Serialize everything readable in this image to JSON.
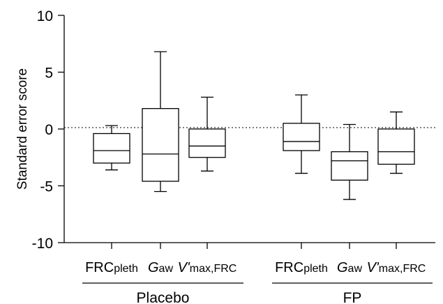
{
  "chart_data": {
    "type": "boxplot",
    "ylabel": "Standard error score",
    "ylim": [
      -10,
      10
    ],
    "yticks": [
      10,
      5,
      0,
      -5,
      -10
    ],
    "ytick_labels": [
      "10",
      "5",
      "0",
      "-5",
      "-10"
    ],
    "reference_line": 0,
    "groups": [
      {
        "name": "Placebo",
        "boxes": [
          {
            "label_main": "FRC",
            "label_italic": "",
            "label_sub": "pleth",
            "min": -3.6,
            "q1": -3.0,
            "median": -1.9,
            "q3": -0.4,
            "max": 0.3
          },
          {
            "label_main": "",
            "label_italic": "G",
            "label_sub": "aw",
            "min": -5.5,
            "q1": -4.6,
            "median": -2.2,
            "q3": 1.8,
            "max": 6.8
          },
          {
            "label_main": "",
            "label_italic": "V'",
            "label_sub": "max,FRC",
            "min": -3.7,
            "q1": -2.5,
            "median": -1.5,
            "q3": 0.0,
            "max": 2.8
          }
        ]
      },
      {
        "name": "FP",
        "boxes": [
          {
            "label_main": "FRC",
            "label_italic": "",
            "label_sub": "pleth",
            "min": -3.9,
            "q1": -1.9,
            "median": -1.1,
            "q3": 0.5,
            "max": 3.0
          },
          {
            "label_main": "",
            "label_italic": "G",
            "label_sub": "aw",
            "min": -6.2,
            "q1": -4.5,
            "median": -2.8,
            "q3": -2.0,
            "max": 0.4
          },
          {
            "label_main": "",
            "label_italic": "V'",
            "label_sub": "max,FRC",
            "min": -3.9,
            "q1": -3.1,
            "median": -2.0,
            "q3": 0.0,
            "max": 1.5
          }
        ]
      }
    ]
  }
}
